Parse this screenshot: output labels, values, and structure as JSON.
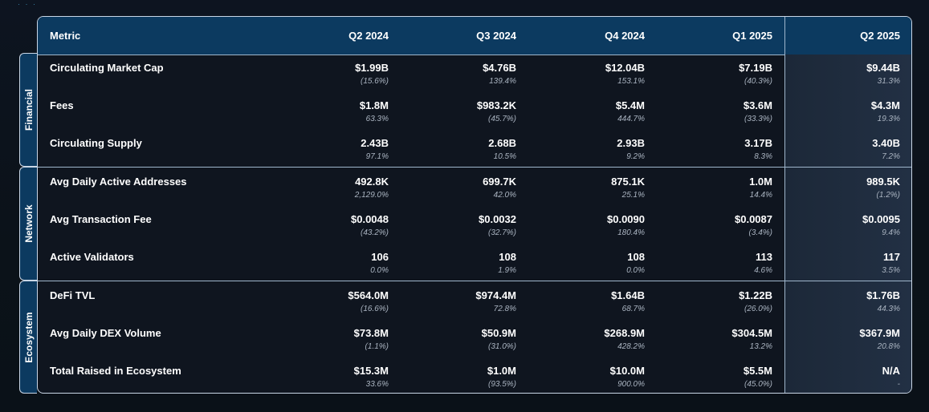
{
  "header": {
    "metric_label": "Metric",
    "columns": [
      "Q2 2024",
      "Q3 2024",
      "Q4 2024",
      "Q1 2025",
      "Q2 2025"
    ]
  },
  "sections": [
    {
      "label": "Financial",
      "rows": [
        {
          "metric": "Circulating Market Cap",
          "values": [
            "$1.99B",
            "$4.76B",
            "$12.04B",
            "$7.19B",
            "$9.44B"
          ],
          "changes": [
            "(15.6%)",
            "139.4%",
            "153.1%",
            "(40.3%)",
            "31.3%"
          ]
        },
        {
          "metric": "Fees",
          "values": [
            "$1.8M",
            "$983.2K",
            "$5.4M",
            "$3.6M",
            "$4.3M"
          ],
          "changes": [
            "63.3%",
            "(45.7%)",
            "444.7%",
            "(33.3%)",
            "19.3%"
          ]
        },
        {
          "metric": "Circulating Supply",
          "values": [
            "2.43B",
            "2.68B",
            "2.93B",
            "3.17B",
            "3.40B"
          ],
          "changes": [
            "97.1%",
            "10.5%",
            "9.2%",
            "8.3%",
            "7.2%"
          ]
        }
      ]
    },
    {
      "label": "Network",
      "rows": [
        {
          "metric": "Avg Daily Active Addresses",
          "values": [
            "492.8K",
            "699.7K",
            "875.1K",
            "1.0M",
            "989.5K"
          ],
          "changes": [
            "2,129.0%",
            "42.0%",
            "25.1%",
            "14.4%",
            "(1.2%)"
          ]
        },
        {
          "metric": "Avg Transaction Fee",
          "values": [
            "$0.0048",
            "$0.0032",
            "$0.0090",
            "$0.0087",
            "$0.0095"
          ],
          "changes": [
            "(43.2%)",
            "(32.7%)",
            "180.4%",
            "(3.4%)",
            "9.4%"
          ]
        },
        {
          "metric": "Active Validators",
          "values": [
            "106",
            "108",
            "108",
            "113",
            "117"
          ],
          "changes": [
            "0.0%",
            "1.9%",
            "0.0%",
            "4.6%",
            "3.5%"
          ]
        }
      ]
    },
    {
      "label": "Ecosystem",
      "rows": [
        {
          "metric": "DeFi TVL",
          "values": [
            "$564.0M",
            "$974.4M",
            "$1.64B",
            "$1.22B",
            "$1.76B"
          ],
          "changes": [
            "(16.6%)",
            "72.8%",
            "68.7%",
            "(26.0%)",
            "44.3%"
          ]
        },
        {
          "metric": "Avg Daily DEX Volume",
          "values": [
            "$73.8M",
            "$50.9M",
            "$268.9M",
            "$304.5M",
            "$367.9M"
          ],
          "changes": [
            "(1.1%)",
            "(31.0%)",
            "428.2%",
            "13.2%",
            "20.8%"
          ]
        },
        {
          "metric": "Total Raised in Ecosystem",
          "values": [
            "$15.3M",
            "$1.0M",
            "$10.0M",
            "$5.5M",
            "N/A"
          ],
          "changes": [
            "33.6%",
            "(93.5%)",
            "900.0%",
            "(45.0%)",
            "-"
          ]
        }
      ]
    }
  ],
  "colors": {
    "header_bg": "#0c3a60",
    "page_bg": "#0d1420",
    "border": "#c9d6e6",
    "highlight_col": "#1e2b3d"
  }
}
